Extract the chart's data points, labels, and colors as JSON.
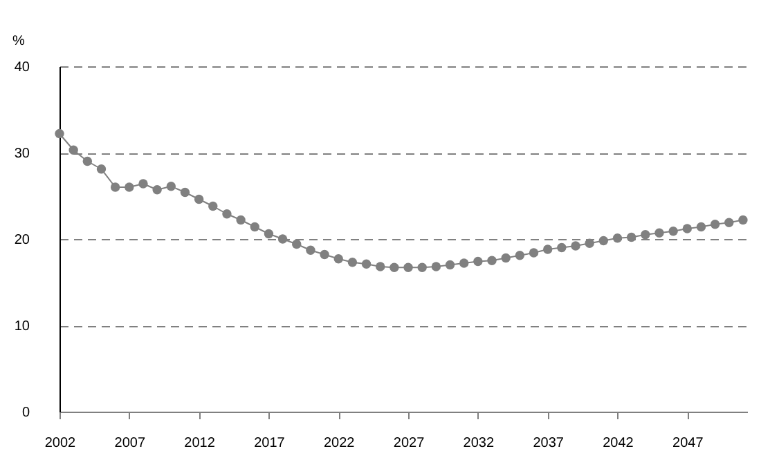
{
  "chart_data": {
    "type": "line",
    "ylabel": "%",
    "marker": "circle",
    "grid": "y",
    "line_style": "solid",
    "x": [
      2002,
      2003,
      2004,
      2005,
      2006,
      2007,
      2008,
      2009,
      2010,
      2011,
      2012,
      2013,
      2014,
      2015,
      2016,
      2017,
      2018,
      2019,
      2020,
      2021,
      2022,
      2023,
      2024,
      2025,
      2026,
      2027,
      2028,
      2029,
      2030,
      2031,
      2032,
      2033,
      2034,
      2035,
      2036,
      2037,
      2038,
      2039,
      2040,
      2041,
      2042,
      2043,
      2044,
      2045,
      2046,
      2047,
      2048,
      2049,
      2050,
      2051
    ],
    "series": [
      {
        "color": "#808080",
        "values": [
          32.2,
          30.3,
          29.0,
          28.1,
          26.0,
          26.0,
          26.4,
          25.7,
          26.1,
          25.4,
          24.6,
          23.8,
          22.9,
          22.2,
          21.4,
          20.6,
          20.0,
          19.4,
          18.7,
          18.2,
          17.7,
          17.3,
          17.1,
          16.8,
          16.7,
          16.7,
          16.7,
          16.8,
          17.0,
          17.2,
          17.4,
          17.5,
          17.8,
          18.1,
          18.4,
          18.8,
          19.0,
          19.2,
          19.5,
          19.8,
          20.1,
          20.2,
          20.5,
          20.7,
          20.9,
          21.2,
          21.4,
          21.7,
          21.9,
          22.2
        ]
      }
    ],
    "xlim": [
      2002,
      2051.3
    ],
    "xticks": [
      2002,
      2007,
      2012,
      2017,
      2022,
      2027,
      2032,
      2037,
      2042,
      2047
    ],
    "ylim": [
      0,
      40
    ],
    "yticks": [
      0,
      10,
      20,
      30,
      40
    ]
  }
}
